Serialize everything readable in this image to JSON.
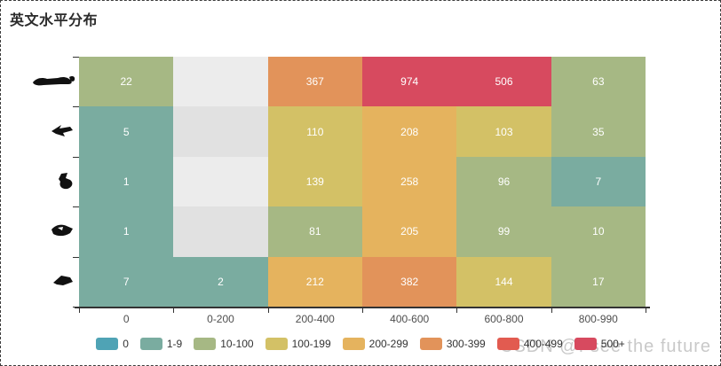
{
  "title": "英文水平分布",
  "watermark": "CSDN @I see the future",
  "colors": {
    "axis_line": "#333333",
    "axis_label": "#4e4e4e",
    "cell_text": "#ffffff",
    "blank_cell_light": "#ececec",
    "blank_cell_dark": "#e1e1e1",
    "icon": "#111111"
  },
  "chart_data": {
    "type": "heatmap",
    "title": "英文水平分布",
    "x_categories": [
      "0",
      "0-200",
      "200-400",
      "400-600",
      "600-800",
      "800-990"
    ],
    "y_categories": [
      "row-icon-1",
      "row-icon-2",
      "row-icon-3",
      "row-icon-4",
      "row-icon-5"
    ],
    "y_axis_note": "y labels are tiny illegible black glyph images",
    "rows_top_to_bottom": [
      [
        22,
        null,
        367,
        974,
        506,
        63
      ],
      [
        5,
        null,
        110,
        208,
        103,
        35
      ],
      [
        1,
        null,
        139,
        258,
        96,
        7
      ],
      [
        1,
        null,
        81,
        205,
        99,
        10
      ],
      [
        7,
        2,
        212,
        382,
        144,
        17
      ]
    ],
    "blank_cells_note": "null cells render as gray (no data), striped by row",
    "legend_position": "bottom",
    "legend": [
      {
        "label": "0",
        "color": "#4fa3b5",
        "min": 0,
        "max": 0
      },
      {
        "label": "1-9",
        "color": "#7aaca0",
        "min": 1,
        "max": 9
      },
      {
        "label": "10-100",
        "color": "#a6b884",
        "min": 10,
        "max": 99
      },
      {
        "label": "100-199",
        "color": "#d3c166",
        "min": 100,
        "max": 199
      },
      {
        "label": "200-299",
        "color": "#e5b35e",
        "min": 200,
        "max": 299
      },
      {
        "label": "300-399",
        "color": "#e2935a",
        "min": 300,
        "max": 399
      },
      {
        "label": "400-499",
        "color": "#e25b50",
        "min": 400,
        "max": 499
      },
      {
        "label": "500+",
        "color": "#d74a5f",
        "min": 500,
        "max": null
      }
    ]
  }
}
